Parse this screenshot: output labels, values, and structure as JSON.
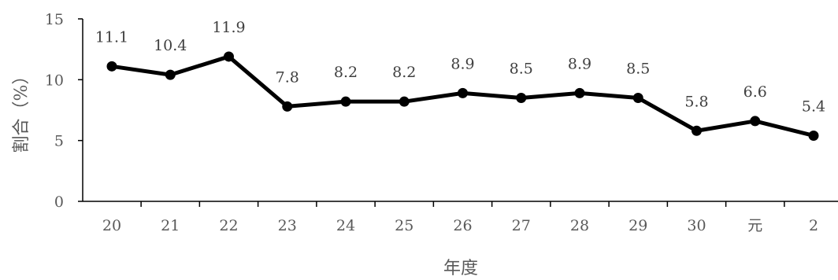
{
  "chart_data": {
    "type": "line",
    "title": "",
    "xlabel": "年度",
    "ylabel": "割合（%）",
    "categories": [
      "20",
      "21",
      "22",
      "23",
      "24",
      "25",
      "26",
      "27",
      "28",
      "29",
      "30",
      "元",
      "2"
    ],
    "series": [
      {
        "values": [
          11.1,
          10.4,
          11.9,
          7.8,
          8.2,
          8.2,
          8.9,
          8.5,
          8.9,
          8.5,
          5.8,
          6.6,
          5.4
        ],
        "labels": [
          "11.1",
          "10.4",
          "11.9",
          "7.8",
          "8.2",
          "8.2",
          "8.9",
          "8.5",
          "8.9",
          "8.5",
          "5.8",
          "6.6",
          "5.4"
        ],
        "color": "#000000"
      }
    ],
    "ylim": [
      0,
      15
    ],
    "yticks": [
      0,
      5,
      10,
      15
    ],
    "ytick_labels": [
      "0",
      "5",
      "10",
      "15"
    ],
    "grid": false,
    "legend": "none",
    "axis_color": "#000000"
  }
}
